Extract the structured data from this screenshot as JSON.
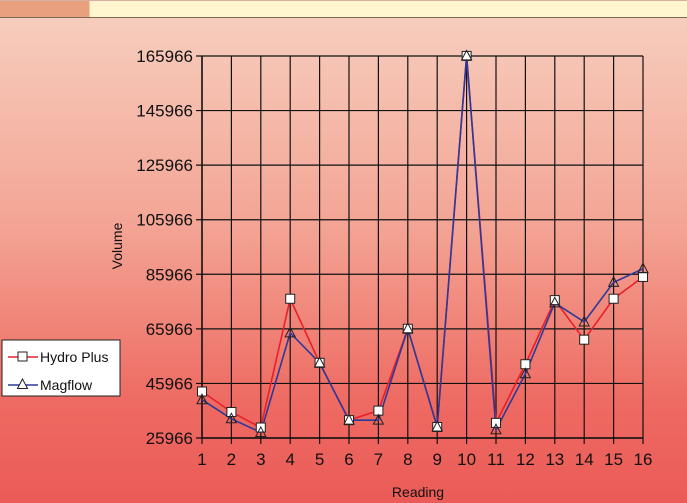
{
  "chart_data": {
    "type": "line",
    "xlabel": "Reading",
    "ylabel": "Volume",
    "categories": [
      "1",
      "2",
      "3",
      "4",
      "5",
      "6",
      "7",
      "8",
      "9",
      "10",
      "11",
      "12",
      "13",
      "14",
      "15",
      "16"
    ],
    "yticks": [
      "25966",
      "45966",
      "65966",
      "85966",
      "105966",
      "125966",
      "145966",
      "165966"
    ],
    "ylim": [
      25966,
      165966
    ],
    "grid": true,
    "legend_position": "left",
    "series": [
      {
        "name": "Hydro Plus",
        "color": "#e8202a",
        "marker": "square",
        "values": [
          43000,
          35500,
          29800,
          77000,
          53500,
          32500,
          36000,
          66000,
          30000,
          166000,
          31500,
          53000,
          76500,
          62000,
          77000,
          85000
        ]
      },
      {
        "name": "Magflow",
        "color": "#2b3a9a",
        "marker": "triangle",
        "values": [
          40000,
          33000,
          28000,
          64500,
          53500,
          32500,
          32500,
          66000,
          30000,
          166000,
          29000,
          49500,
          75500,
          68500,
          83000,
          88000
        ]
      }
    ]
  }
}
